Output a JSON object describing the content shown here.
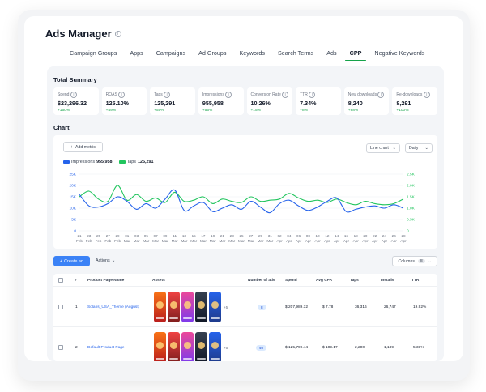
{
  "app": {
    "title": "Ads Manager"
  },
  "tabs": [
    {
      "label": "Campaign Groups"
    },
    {
      "label": "Apps"
    },
    {
      "label": "Campaigns"
    },
    {
      "label": "Ad Groups"
    },
    {
      "label": "Keywords"
    },
    {
      "label": "Search Terms"
    },
    {
      "label": "Ads"
    },
    {
      "label": "CPP",
      "active": true
    },
    {
      "label": "Negative Keywords"
    }
  ],
  "summary": {
    "title": "Total Summary",
    "metrics": [
      {
        "label": "Spend",
        "value": "$23,296.32",
        "change": "+150%"
      },
      {
        "label": "ROAS",
        "value": "125.10%",
        "change": "+49%"
      },
      {
        "label": "Taps",
        "value": "125,291",
        "change": "+50%"
      },
      {
        "label": "Impressions",
        "value": "955,958",
        "change": "+55%"
      },
      {
        "label": "Conversion Rate",
        "value": "10.26%",
        "change": "+15%"
      },
      {
        "label": "TTR",
        "value": "7.34%",
        "change": "+8%"
      },
      {
        "label": "New downloads",
        "value": "8,240",
        "change": "+88%"
      },
      {
        "label": "Re-downloads",
        "value": "8,291",
        "change": "+100%"
      }
    ]
  },
  "chart_section": {
    "title": "Chart",
    "add_metric_label": "Add metric",
    "chart_type_select": "Line chart",
    "interval_select": "Daily"
  },
  "chart_data": {
    "type": "line",
    "x": [
      "21 Feb",
      "23 Feb",
      "25 Feb",
      "27 Feb",
      "29 Feb",
      "01 Mar",
      "03 Mar",
      "05 Mar",
      "07 Mar",
      "09 Mar",
      "11 Mar",
      "13 Mar",
      "15 Mar",
      "17 Mar",
      "19 Mar",
      "21 Mar",
      "23 Mar",
      "25 Mar",
      "27 Mar",
      "29 Mar",
      "31 Mar",
      "02 Apr",
      "04 Apr",
      "06 Apr",
      "08 Apr",
      "10 Apr",
      "12 Apr",
      "14 Apr",
      "16 Apr",
      "18 Apr",
      "20 Apr",
      "22 Apr",
      "24 Apr",
      "26 Apr",
      "28 Apr"
    ],
    "tick_labels_top": [
      "21",
      "23",
      "25",
      "27",
      "29",
      "01",
      "03",
      "05",
      "07",
      "09",
      "11",
      "13",
      "15",
      "17",
      "19",
      "21",
      "23",
      "25",
      "27",
      "29",
      "31",
      "02",
      "04",
      "06",
      "08",
      "10",
      "12",
      "14",
      "16",
      "18",
      "20",
      "22",
      "24",
      "26",
      "28"
    ],
    "tick_labels_bottom": [
      "Feb",
      "Feb",
      "Feb",
      "Feb",
      "Feb",
      "Mar",
      "Mar",
      "Mar",
      "Mar",
      "Mar",
      "Mar",
      "Mar",
      "Mar",
      "Mar",
      "Mar",
      "Mar",
      "Mar",
      "Mar",
      "Mar",
      "Mar",
      "Mar",
      "Apr",
      "Apr",
      "Apr",
      "Apr",
      "Apr",
      "Apr",
      "Apr",
      "Apr",
      "Apr",
      "Apr",
      "Apr",
      "Apr",
      "Apr",
      "Apr"
    ],
    "y_left_ticks": [
      "0",
      "5K",
      "10K",
      "15K",
      "20K",
      "25K"
    ],
    "y_right_ticks": [
      "0",
      "0.5K",
      "1.0K",
      "1.5K",
      "2.0K",
      "2.5K"
    ],
    "ylim_left": [
      0,
      25000
    ],
    "ylim_right": [
      0,
      2500
    ],
    "series": [
      {
        "name": "Impressions",
        "total": "955,958",
        "color": "#2563eb",
        "axis": "left",
        "values": [
          16000,
          11000,
          10500,
          12000,
          15000,
          13000,
          9500,
          12000,
          10000,
          14000,
          18000,
          9000,
          11000,
          12500,
          8500,
          10000,
          11500,
          9500,
          13000,
          10500,
          8000,
          12000,
          13500,
          11000,
          9000,
          10500,
          13000,
          14500,
          8500,
          9500,
          10500,
          11000,
          10000,
          11500,
          10000
        ]
      },
      {
        "name": "Taps",
        "total": "125,291",
        "color": "#22c55e",
        "axis": "left",
        "values": [
          15000,
          17500,
          14000,
          13000,
          20000,
          13500,
          16000,
          13000,
          14500,
          12500,
          17000,
          13000,
          13500,
          15000,
          12000,
          14000,
          13000,
          12500,
          15000,
          13000,
          13500,
          14000,
          16500,
          14500,
          13000,
          13500,
          12500,
          14000,
          12500,
          11500,
          13000,
          12000,
          11500,
          12000,
          14000
        ]
      }
    ]
  },
  "table_toolbar": {
    "create_label": "Create ad",
    "actions_label": "Actions",
    "columns_label": "Columns",
    "columns_count": "8"
  },
  "table": {
    "headers": [
      "#",
      "Product Page Name",
      "Assets",
      "Number of ads",
      "Spend",
      "Avg CPA",
      "Taps",
      "Installs",
      "TTR"
    ],
    "rows": [
      {
        "num": "1",
        "name": "Solaris_USA_Theme (August)",
        "more": "+5",
        "ads": "8",
        "spend": "$ 207,989.32",
        "cpa": "$ 7.78",
        "taps": "36,316",
        "installs": "26,747",
        "ttr": "19.92%"
      },
      {
        "num": "2",
        "name": "Default Product Page",
        "more": "+5",
        "ads": "40",
        "spend": "$ 125,799.44",
        "cpa": "$ 109.17",
        "taps": "2,200",
        "installs": "1,189",
        "ttr": "5.31%"
      }
    ]
  },
  "colors": {
    "accent": "#16a34a",
    "primary": "#3b82f6",
    "impressions": "#2563eb",
    "taps": "#22c55e"
  }
}
